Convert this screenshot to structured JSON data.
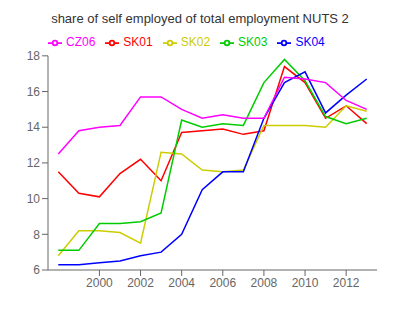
{
  "chart_data": {
    "type": "line",
    "title": "share of self employed of total employment NUTS 2",
    "x": [
      1998,
      1999,
      2000,
      2001,
      2002,
      2003,
      2004,
      2005,
      2006,
      2007,
      2008,
      2009,
      2010,
      2011,
      2012,
      2013
    ],
    "series": [
      {
        "name": "SK01",
        "color": "#FF0000",
        "values": [
          11.5,
          10.3,
          10.1,
          11.4,
          12.2,
          11.0,
          13.7,
          13.8,
          13.9,
          13.6,
          13.8,
          17.4,
          16.5,
          14.5,
          15.2,
          14.2
        ]
      },
      {
        "name": "SK02",
        "color": "#CCCC00",
        "values": [
          6.8,
          8.2,
          8.2,
          8.1,
          7.5,
          12.6,
          12.5,
          11.6,
          11.5,
          11.6,
          14.1,
          14.1,
          14.1,
          14.0,
          15.2,
          14.9
        ]
      },
      {
        "name": "SK03",
        "color": "#00CC00",
        "values": [
          7.1,
          7.1,
          8.6,
          8.6,
          8.7,
          9.2,
          14.4,
          14.0,
          14.2,
          14.1,
          16.5,
          17.8,
          16.6,
          14.6,
          14.2,
          14.5
        ]
      },
      {
        "name": "SK04",
        "color": "#0000FF",
        "values": [
          6.3,
          6.3,
          6.4,
          6.5,
          6.8,
          7.0,
          8.0,
          10.5,
          11.5,
          11.5,
          14.5,
          16.5,
          17.1,
          14.8,
          15.8,
          16.7
        ]
      },
      {
        "name": "CZ06",
        "color": "#FF00FF",
        "values": [
          12.5,
          13.8,
          14.0,
          14.1,
          15.7,
          15.7,
          15.0,
          14.5,
          14.7,
          14.5,
          14.5,
          16.8,
          16.7,
          16.5,
          15.5,
          15.0
        ]
      }
    ],
    "xlim": [
      1997.5,
      2013.5
    ],
    "xticks": [
      2000,
      2002,
      2004,
      2006,
      2008,
      2010,
      2012
    ],
    "ylim": [
      6,
      18
    ],
    "yticks": [
      6,
      8,
      10,
      12,
      14,
      16,
      18
    ],
    "grid": false,
    "legend": "upper left"
  }
}
